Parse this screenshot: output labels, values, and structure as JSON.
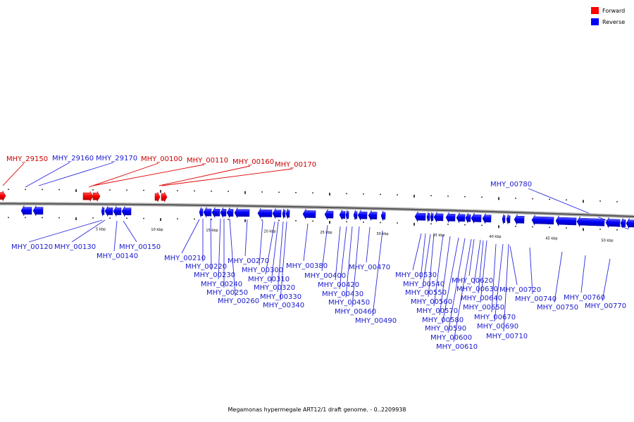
{
  "legend": {
    "forward": {
      "label": "Forward",
      "color": "#ff1a1a"
    },
    "reverse": {
      "label": "Reverse",
      "color": "#1a1aff"
    }
  },
  "caption": "Megamonas hypermegale ART12/1 draft genome. - 0..2209938",
  "scale_labels": [
    "5 kbp",
    "10 kbp",
    "15 kbp",
    "20 kbp",
    "25 kbp",
    "30 kbp",
    "35 kbp",
    "40 kbp",
    "45 kbp",
    "50 kbp"
  ],
  "label_colors": {
    "forward": "#cc0000",
    "reverse": "#1a1acc"
  },
  "labels": [
    {
      "text": "MHY_29150",
      "strand": "forward"
    },
    {
      "text": "MHY_29160",
      "strand": "reverse"
    },
    {
      "text": "MHY_29170",
      "strand": "reverse"
    },
    {
      "text": "MHY_00100",
      "strand": "forward"
    },
    {
      "text": "MHY_00110",
      "strand": "forward"
    },
    {
      "text": "MHY_00160",
      "strand": "forward"
    },
    {
      "text": "MHY_00170",
      "strand": "forward"
    },
    {
      "text": "MHY_00780",
      "strand": "reverse"
    },
    {
      "text": "MHY_00120",
      "strand": "reverse"
    },
    {
      "text": "MHY_00130",
      "strand": "reverse"
    },
    {
      "text": "MHY_00140",
      "strand": "reverse"
    },
    {
      "text": "MHY_00150",
      "strand": "reverse"
    },
    {
      "text": "MHY_00210",
      "strand": "reverse"
    },
    {
      "text": "MHY_00220",
      "strand": "reverse"
    },
    {
      "text": "MHY_00230",
      "strand": "reverse"
    },
    {
      "text": "MHY_00240",
      "strand": "reverse"
    },
    {
      "text": "MHY_00250",
      "strand": "reverse"
    },
    {
      "text": "MHY_00260",
      "strand": "reverse"
    },
    {
      "text": "MHY_00270",
      "strand": "reverse"
    },
    {
      "text": "MHY_00300",
      "strand": "reverse"
    },
    {
      "text": "MHY_00310",
      "strand": "reverse"
    },
    {
      "text": "MHY_00320",
      "strand": "reverse"
    },
    {
      "text": "MHY_00330",
      "strand": "reverse"
    },
    {
      "text": "MHY_00340",
      "strand": "reverse"
    },
    {
      "text": "MHY_00380",
      "strand": "reverse"
    },
    {
      "text": "MHY_00400",
      "strand": "reverse"
    },
    {
      "text": "MHY_00420",
      "strand": "reverse"
    },
    {
      "text": "MHY_00430",
      "strand": "reverse"
    },
    {
      "text": "MHY_00450",
      "strand": "reverse"
    },
    {
      "text": "MHY_00460",
      "strand": "reverse"
    },
    {
      "text": "MHY_00470",
      "strand": "reverse"
    },
    {
      "text": "MHY_00490",
      "strand": "reverse"
    },
    {
      "text": "MHY_00530",
      "strand": "reverse"
    },
    {
      "text": "MHY_00540",
      "strand": "reverse"
    },
    {
      "text": "MHY_00550",
      "strand": "reverse"
    },
    {
      "text": "MHY_00560",
      "strand": "reverse"
    },
    {
      "text": "MHY_00570",
      "strand": "reverse"
    },
    {
      "text": "MHY_00580",
      "strand": "reverse"
    },
    {
      "text": "MHY_00590",
      "strand": "reverse"
    },
    {
      "text": "MHY_00600",
      "strand": "reverse"
    },
    {
      "text": "MHY_00610",
      "strand": "reverse"
    },
    {
      "text": "MHY_00620",
      "strand": "reverse"
    },
    {
      "text": "MHY_00630",
      "strand": "reverse"
    },
    {
      "text": "MHY_00640",
      "strand": "reverse"
    },
    {
      "text": "MHY_00650",
      "strand": "reverse"
    },
    {
      "text": "MHY_00670",
      "strand": "reverse"
    },
    {
      "text": "MHY_00690",
      "strand": "reverse"
    },
    {
      "text": "MHY_00710",
      "strand": "reverse"
    },
    {
      "text": "MHY_00720",
      "strand": "reverse"
    },
    {
      "text": "MHY_00740",
      "strand": "reverse"
    },
    {
      "text": "MHY_00750",
      "strand": "reverse"
    },
    {
      "text": "MHY_00760",
      "strand": "reverse"
    },
    {
      "text": "MHY_00770",
      "strand": "reverse"
    }
  ]
}
